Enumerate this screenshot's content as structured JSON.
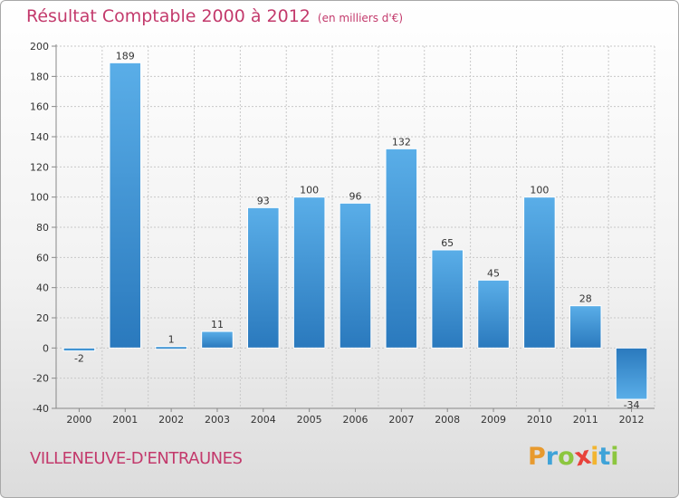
{
  "chart_data": {
    "type": "bar",
    "title": "Résultat Comptable 2000 à 2012",
    "subtitle": "(en milliers d'€)",
    "categories": [
      "2000",
      "2001",
      "2002",
      "2003",
      "2004",
      "2005",
      "2006",
      "2007",
      "2008",
      "2009",
      "2010",
      "2011",
      "2012"
    ],
    "values": [
      -2,
      189,
      1,
      11,
      93,
      100,
      96,
      132,
      65,
      45,
      100,
      28,
      -34
    ],
    "ylim": [
      -40,
      200
    ],
    "yticks": [
      -40,
      -20,
      0,
      20,
      40,
      60,
      80,
      100,
      120,
      140,
      160,
      180,
      200
    ],
    "xlabel": "",
    "ylabel": "",
    "grid": true,
    "bar_color": "#3d94d6"
  },
  "place_name": "VILLENEUVE-D'ENTRAUNES",
  "brand": {
    "letters": [
      "P",
      "r",
      "o",
      "x",
      "i",
      "t",
      "i"
    ],
    "colors": [
      "#e89a2e",
      "#3fa3d8",
      "#8cc63f",
      "#e8423b",
      "#f2b530",
      "#3fa3d8",
      "#8cc63f"
    ]
  }
}
